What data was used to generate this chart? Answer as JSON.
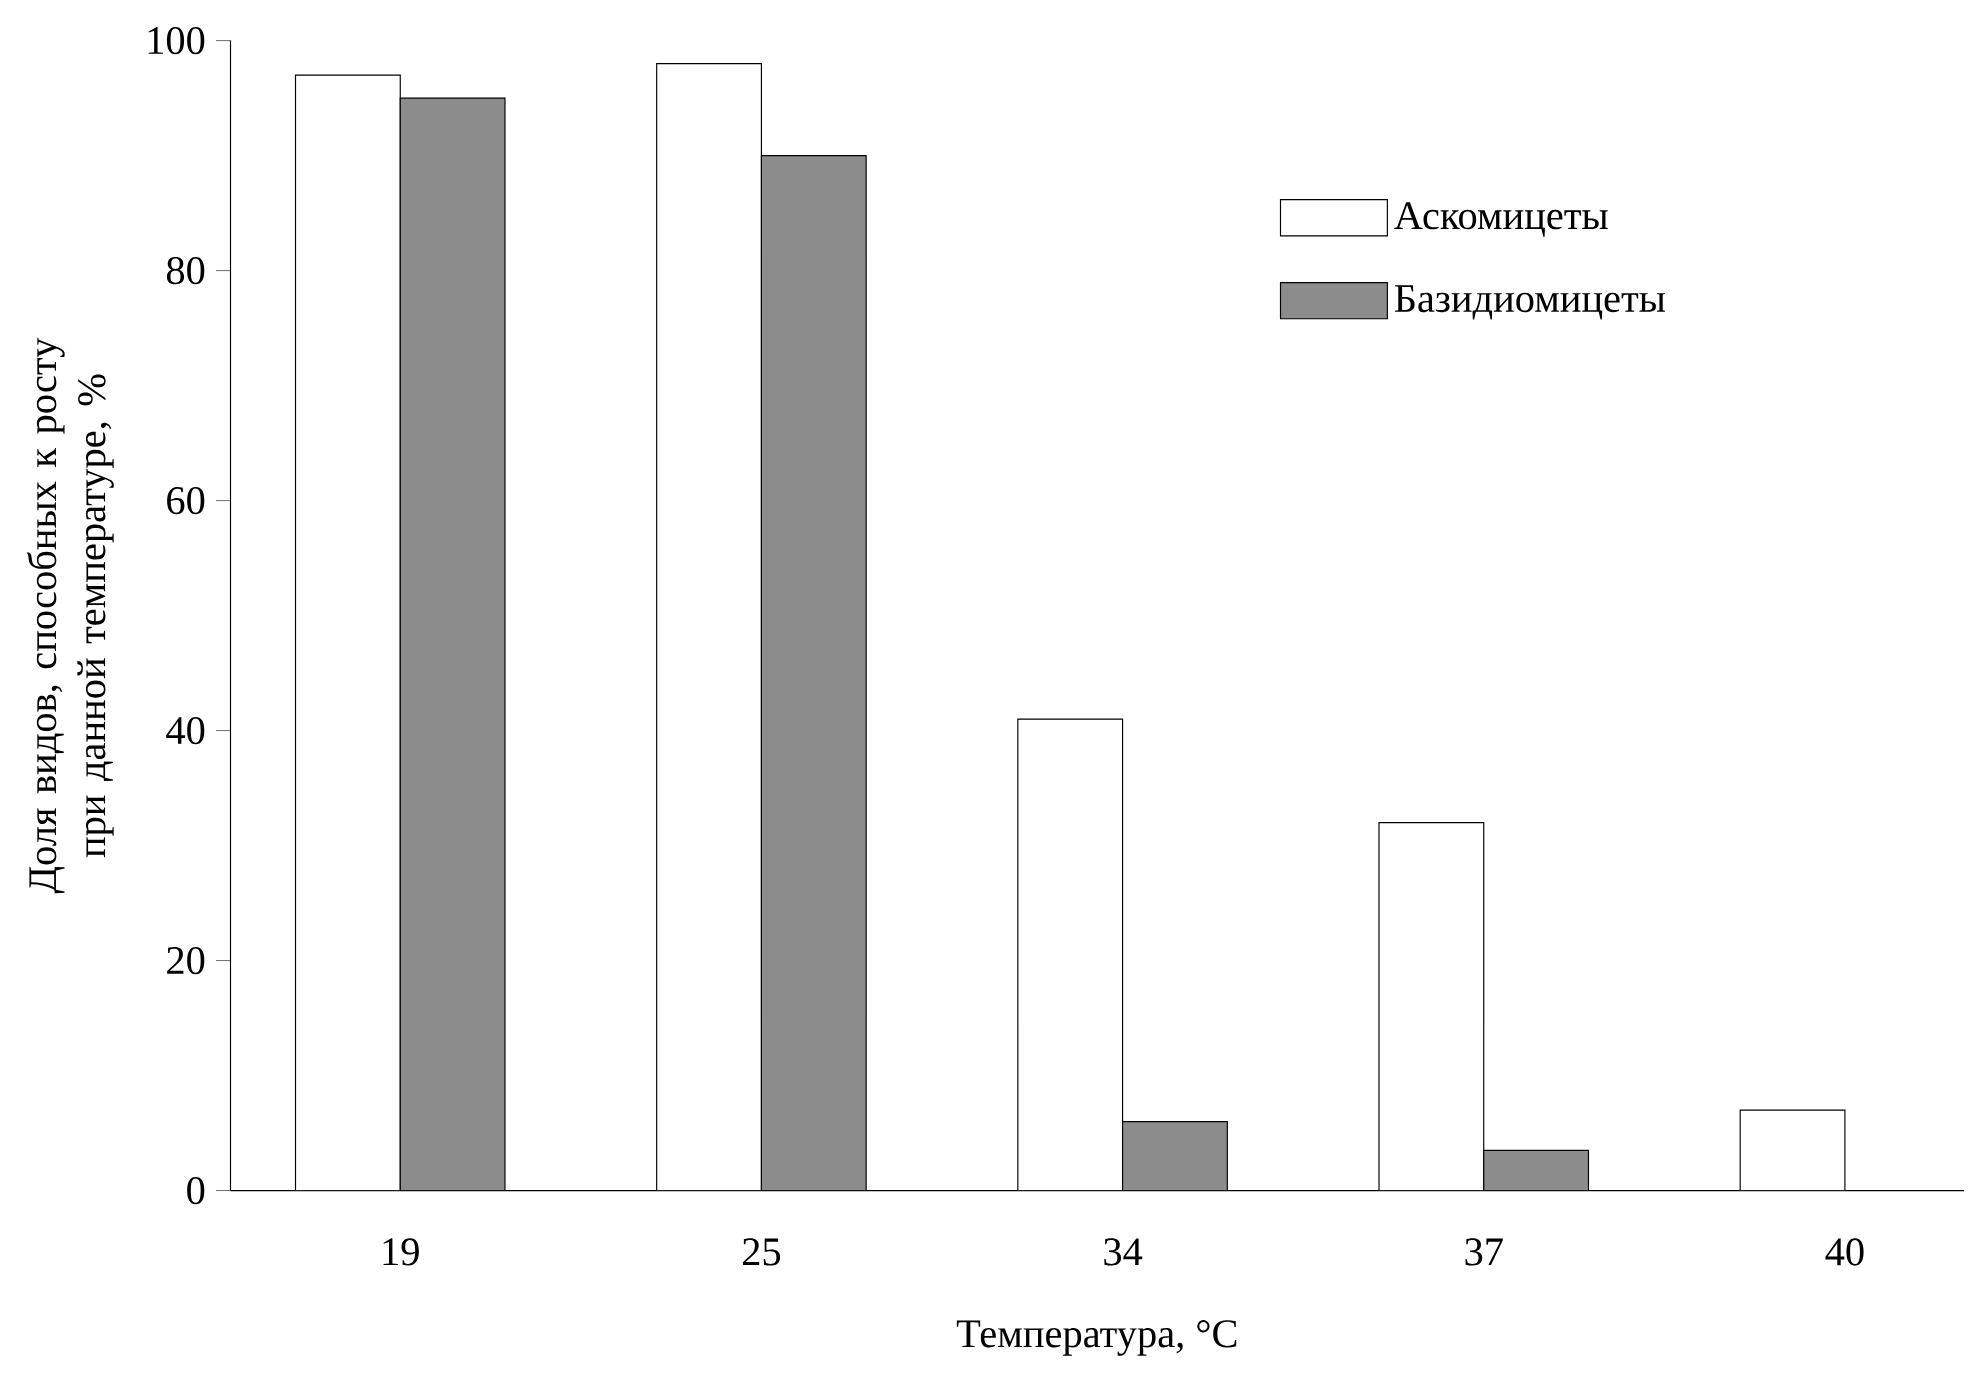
{
  "chart_data": {
    "type": "bar",
    "xlabel": "Температура, °C",
    "ylabel": "Доля видов, способных к росту при данной температуре, %",
    "categories": [
      "19",
      "25",
      "34",
      "37",
      "40"
    ],
    "series": [
      {
        "name": "Аскомицеты",
        "color": "#ffffff",
        "values": [
          97,
          98,
          41,
          32,
          7
        ]
      },
      {
        "name": "Базидиомицеты",
        "color": "#8c8c8c",
        "values": [
          95,
          90,
          6,
          3.5,
          0
        ]
      }
    ],
    "ylim": [
      0,
      100
    ],
    "yticks": [
      0,
      20,
      40,
      60,
      80,
      100
    ],
    "grid": false,
    "legend": "top right"
  }
}
